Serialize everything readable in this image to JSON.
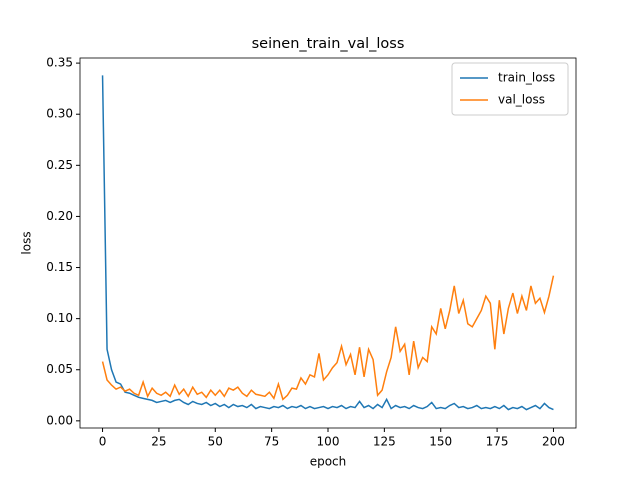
{
  "chart_data": {
    "type": "line",
    "title": "seinen_train_val_loss",
    "x_label": "epoch",
    "y_label": "loss",
    "x": [
      0,
      2,
      4,
      6,
      8,
      10,
      12,
      14,
      16,
      18,
      20,
      22,
      24,
      26,
      28,
      30,
      32,
      34,
      36,
      38,
      40,
      42,
      44,
      46,
      48,
      50,
      52,
      54,
      56,
      58,
      60,
      62,
      64,
      66,
      68,
      70,
      72,
      74,
      76,
      78,
      80,
      82,
      84,
      86,
      88,
      90,
      92,
      94,
      96,
      98,
      100,
      102,
      104,
      106,
      108,
      110,
      112,
      114,
      116,
      118,
      120,
      122,
      124,
      126,
      128,
      130,
      132,
      134,
      136,
      138,
      140,
      142,
      144,
      146,
      148,
      150,
      152,
      154,
      156,
      158,
      160,
      162,
      164,
      166,
      168,
      170,
      172,
      174,
      176,
      178,
      180,
      182,
      184,
      186,
      188,
      190,
      192,
      194,
      196,
      198,
      200
    ],
    "series": [
      {
        "name": "train_loss",
        "color": "#1f77b4",
        "values": [
          0.338,
          0.07,
          0.05,
          0.038,
          0.036,
          0.028,
          0.027,
          0.025,
          0.023,
          0.022,
          0.021,
          0.02,
          0.018,
          0.019,
          0.02,
          0.018,
          0.02,
          0.021,
          0.018,
          0.016,
          0.019,
          0.017,
          0.016,
          0.018,
          0.015,
          0.017,
          0.014,
          0.016,
          0.013,
          0.016,
          0.014,
          0.015,
          0.013,
          0.016,
          0.012,
          0.014,
          0.013,
          0.012,
          0.014,
          0.013,
          0.015,
          0.012,
          0.014,
          0.013,
          0.015,
          0.012,
          0.014,
          0.012,
          0.013,
          0.014,
          0.012,
          0.014,
          0.013,
          0.015,
          0.012,
          0.014,
          0.013,
          0.019,
          0.013,
          0.015,
          0.012,
          0.016,
          0.013,
          0.021,
          0.012,
          0.015,
          0.013,
          0.014,
          0.012,
          0.015,
          0.013,
          0.012,
          0.014,
          0.018,
          0.012,
          0.013,
          0.012,
          0.015,
          0.017,
          0.013,
          0.014,
          0.012,
          0.013,
          0.015,
          0.012,
          0.013,
          0.012,
          0.014,
          0.012,
          0.015,
          0.011,
          0.013,
          0.012,
          0.014,
          0.011,
          0.013,
          0.015,
          0.012,
          0.017,
          0.013,
          0.011
        ]
      },
      {
        "name": "val_loss",
        "color": "#ff7f0e",
        "values": [
          0.058,
          0.04,
          0.035,
          0.031,
          0.033,
          0.029,
          0.031,
          0.027,
          0.025,
          0.038,
          0.024,
          0.032,
          0.027,
          0.025,
          0.028,
          0.024,
          0.035,
          0.026,
          0.031,
          0.024,
          0.033,
          0.026,
          0.028,
          0.023,
          0.03,
          0.025,
          0.03,
          0.024,
          0.032,
          0.03,
          0.033,
          0.027,
          0.024,
          0.03,
          0.026,
          0.025,
          0.024,
          0.028,
          0.022,
          0.036,
          0.021,
          0.025,
          0.032,
          0.031,
          0.042,
          0.036,
          0.045,
          0.043,
          0.066,
          0.04,
          0.045,
          0.052,
          0.057,
          0.073,
          0.055,
          0.065,
          0.045,
          0.072,
          0.043,
          0.07,
          0.06,
          0.025,
          0.03,
          0.048,
          0.062,
          0.092,
          0.068,
          0.075,
          0.045,
          0.078,
          0.052,
          0.062,
          0.058,
          0.092,
          0.085,
          0.11,
          0.09,
          0.108,
          0.132,
          0.105,
          0.118,
          0.095,
          0.092,
          0.1,
          0.108,
          0.122,
          0.115,
          0.07,
          0.118,
          0.085,
          0.11,
          0.125,
          0.105,
          0.122,
          0.108,
          0.132,
          0.115,
          0.12,
          0.106,
          0.122,
          0.142
        ]
      }
    ],
    "xlim": [
      -10,
      210
    ],
    "xticks": [
      0,
      25,
      50,
      75,
      100,
      125,
      150,
      175,
      200
    ],
    "ylim": [
      -0.007,
      0.355
    ],
    "yticks": [
      {
        "value": 0,
        "label": "0.00"
      },
      0.05,
      {
        "value": 0.1,
        "label": "0.10"
      },
      0.15,
      {
        "value": 0.2,
        "label": "0.20"
      },
      0.25,
      {
        "value": 0.3,
        "label": "0.30"
      },
      0.35
    ],
    "legend": "upper right"
  }
}
